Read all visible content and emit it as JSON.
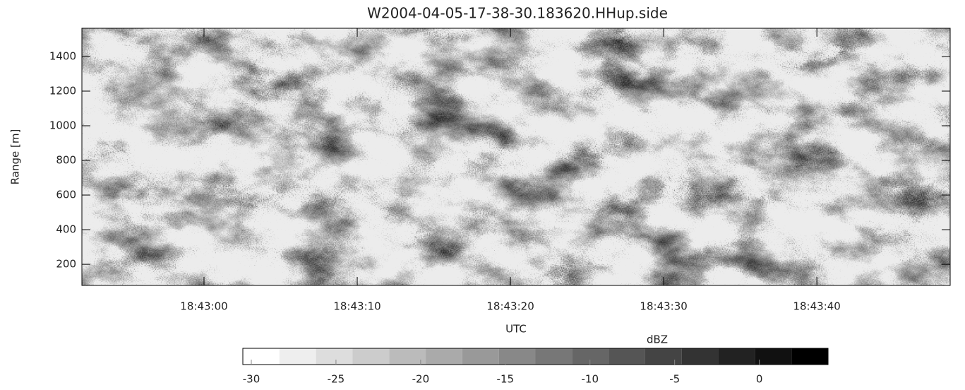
{
  "chart_data": {
    "type": "heatmap",
    "title": "W2004-04-05-17-38-30.183620.HHup.side",
    "xlabel": "UTC",
    "ylabel": "Range [m]",
    "xlim": [
      -7.97,
      48.7
    ],
    "xticks": [
      {
        "value": 0,
        "label": "18:43:00"
      },
      {
        "value": 10,
        "label": "18:43:10"
      },
      {
        "value": 20,
        "label": "18:43:20"
      },
      {
        "value": 30,
        "label": "18:43:30"
      },
      {
        "value": 40,
        "label": "18:43:40"
      }
    ],
    "ylim": [
      78,
      1563
    ],
    "yticks": [
      200,
      400,
      600,
      800,
      1000,
      1200,
      1400
    ],
    "colorbar": {
      "label": "dBZ",
      "bins": [
        -30.5,
        -28.34,
        -26.18,
        -24.02,
        -21.86,
        -19.7,
        -17.54,
        -15.38,
        -13.22,
        -11.06,
        -8.9,
        -6.74,
        -4.58,
        -2.42,
        -0.26,
        1.9,
        4.06
      ],
      "colors": [
        "#ffffff",
        "#eeeeee",
        "#dddddd",
        "#cccccc",
        "#bbbbbb",
        "#aaaaaa",
        "#999999",
        "#888888",
        "#777777",
        "#666666",
        "#555555",
        "#444444",
        "#333333",
        "#222222",
        "#111111",
        "#000000"
      ],
      "ticks": [
        -30,
        -25,
        -20,
        -15,
        -10,
        -5,
        0
      ]
    }
  }
}
